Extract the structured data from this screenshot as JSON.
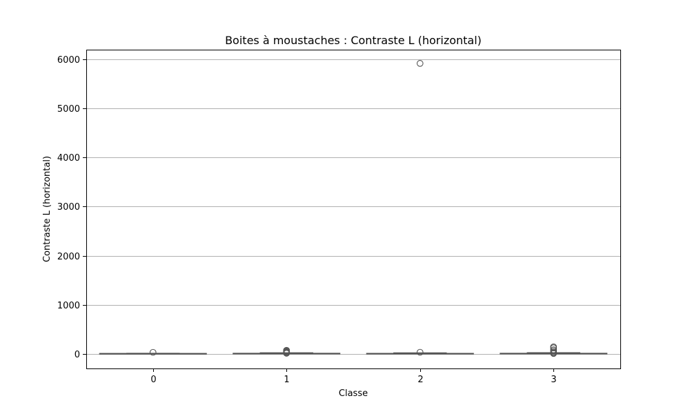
{
  "chart_data": {
    "type": "box",
    "title": "Boites à moustaches : Contraste L (horizontal)",
    "xlabel": "Classe",
    "ylabel": "Contraste L (horizontal)",
    "categories": [
      "0",
      "1",
      "2",
      "3"
    ],
    "ylim": [
      -300,
      6200
    ],
    "yticks": [
      0,
      1000,
      2000,
      3000,
      4000,
      5000,
      6000
    ],
    "grid": "y",
    "box_color": "#555555",
    "grid_color": "#b0b0b0",
    "boxes": [
      {
        "category": "0",
        "whisker_low": 0,
        "q1": 0,
        "median": 2,
        "q3": 6,
        "whisker_high": 10,
        "outliers": [
          28
        ]
      },
      {
        "category": "1",
        "whisker_low": 0,
        "q1": 1,
        "median": 4,
        "q3": 10,
        "whisker_high": 20,
        "outliers": [
          10,
          22,
          35,
          48,
          60,
          70
        ]
      },
      {
        "category": "2",
        "whisker_low": 0,
        "q1": 1,
        "median": 3,
        "q3": 8,
        "whisker_high": 18,
        "outliers": [
          30,
          5920
        ]
      },
      {
        "category": "3",
        "whisker_low": 0,
        "q1": 1,
        "median": 4,
        "q3": 10,
        "whisker_high": 22,
        "outliers": [
          5,
          15,
          30,
          55,
          80,
          120,
          140
        ]
      }
    ]
  }
}
